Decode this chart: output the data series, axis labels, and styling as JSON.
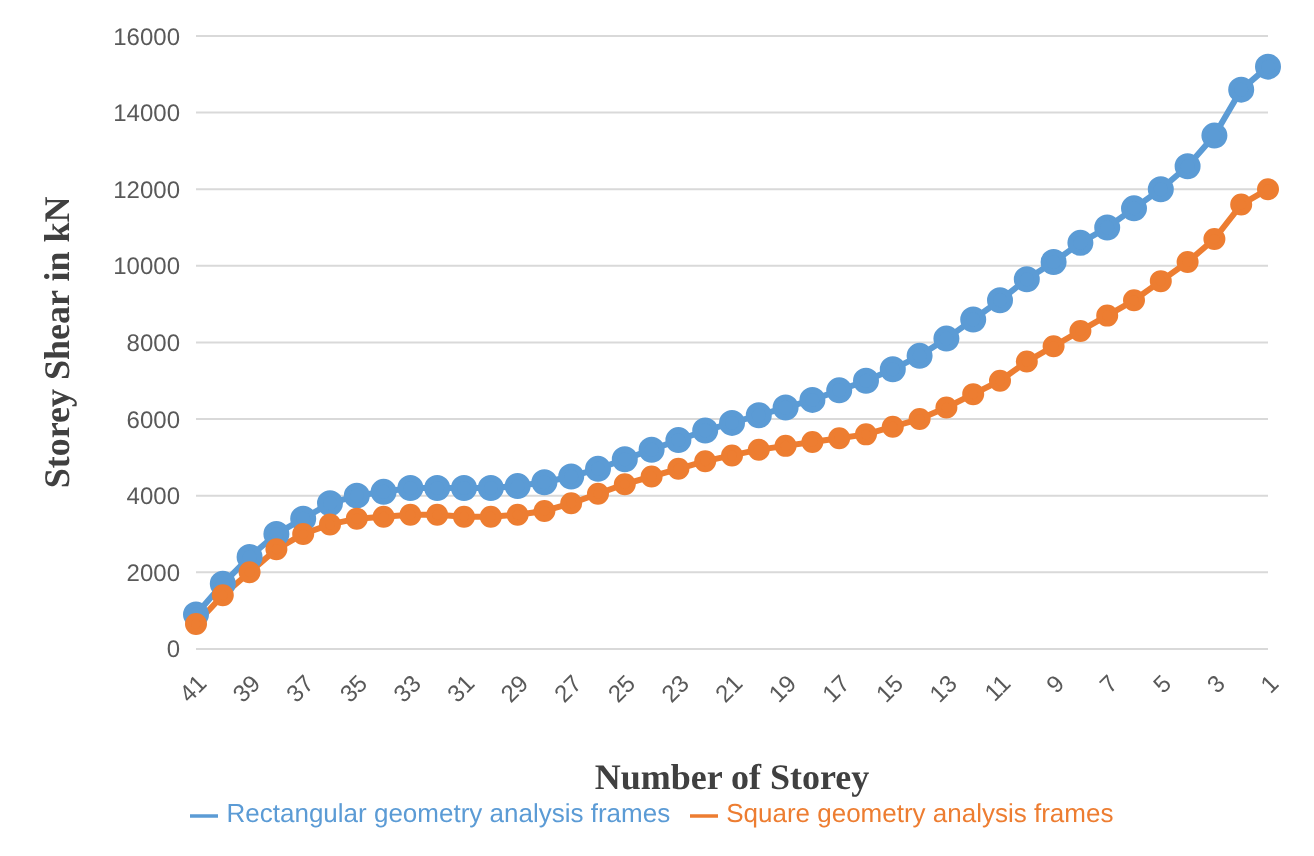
{
  "chart_data": {
    "type": "line",
    "xlabel": "Number of Storey",
    "ylabel": "Storey Shear in kN",
    "categories": [
      "41",
      null,
      "39",
      null,
      "37",
      null,
      "35",
      null,
      "33",
      null,
      "31",
      null,
      "29",
      null,
      "27",
      null,
      "25",
      null,
      "23",
      null,
      "21",
      null,
      "19",
      null,
      "17",
      null,
      "15",
      null,
      "13",
      null,
      "11",
      null,
      "9",
      null,
      "7",
      null,
      "5",
      null,
      "3",
      null,
      "1"
    ],
    "series": [
      {
        "name": "Rectangular geometry analysis frames",
        "color": "#5b9bd5",
        "values": [
          900,
          1700,
          2400,
          3000,
          3400,
          3800,
          4000,
          4100,
          4200,
          4200,
          4200,
          4200,
          4250,
          4350,
          4500,
          4700,
          4950,
          5200,
          5450,
          5700,
          5900,
          6100,
          6300,
          6500,
          6750,
          7000,
          7300,
          7650,
          8100,
          8600,
          9100,
          9650,
          10100,
          10600,
          11000,
          11500,
          12000,
          12600,
          13400,
          14600,
          15200
        ]
      },
      {
        "name": "Square geometry analysis frames",
        "color": "#ed7d31",
        "values": [
          650,
          1400,
          2000,
          2600,
          3000,
          3250,
          3400,
          3450,
          3500,
          3500,
          3450,
          3450,
          3500,
          3600,
          3800,
          4050,
          4300,
          4500,
          4700,
          4900,
          5050,
          5200,
          5300,
          5400,
          5500,
          5600,
          5800,
          6000,
          6300,
          6650,
          7000,
          7500,
          7900,
          8300,
          8700,
          9100,
          9600,
          10100,
          10700,
          11600,
          12000
        ]
      }
    ],
    "ylim": [
      0,
      16000
    ],
    "yticks": [
      0,
      2000,
      4000,
      6000,
      8000,
      10000,
      12000,
      14000,
      16000
    ],
    "grid": "y",
    "legend": "bottom",
    "marker": "circle",
    "line_style": "solid"
  }
}
